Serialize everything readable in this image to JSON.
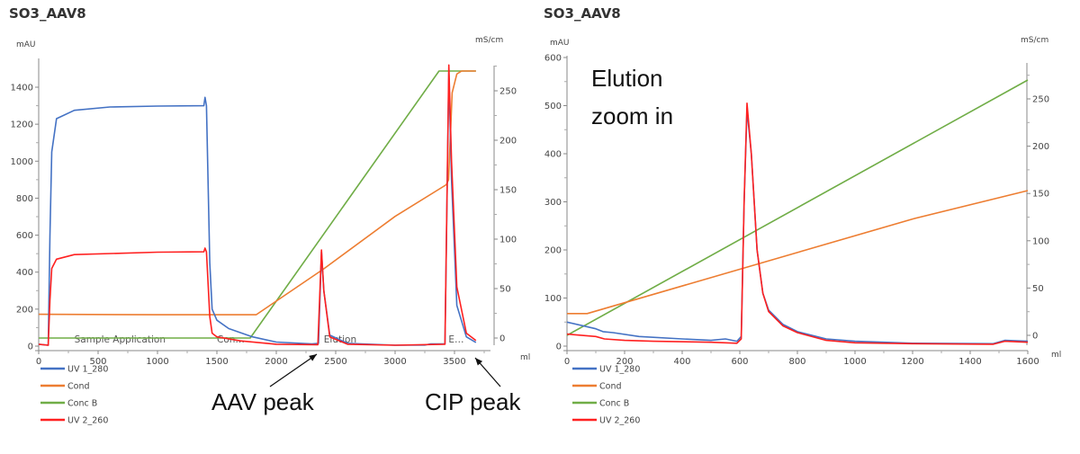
{
  "chart_data": [
    {
      "type": "line",
      "title": "SO3_AAV8",
      "xlabel": "ml",
      "ylabel": "mAU",
      "y2label": "mS/cm",
      "xlim": [
        0,
        3700
      ],
      "ylim": [
        0,
        1550
      ],
      "y2lim": [
        -10,
        275
      ],
      "xticks": [
        0,
        500,
        1000,
        1500,
        2000,
        2500,
        3000,
        3500
      ],
      "yticks": [
        0,
        200,
        400,
        600,
        800,
        1000,
        1200,
        1400
      ],
      "y2ticks": [
        0,
        50,
        100,
        150,
        200,
        250
      ],
      "grid": false,
      "legend_placement": "bottom-left",
      "phase_labels": [
        "Sample Application",
        "Con…",
        "Elution",
        "E…"
      ],
      "phase_x": [
        300,
        1500,
        2400,
        3450
      ],
      "annotations": [
        {
          "text": "AAV peak",
          "points_to_x": 2380
        },
        {
          "text": "CIP peak",
          "points_to_x": 3680
        }
      ],
      "series": [
        {
          "name": "UV 1_280",
          "axis": "left",
          "color": "#4472c4",
          "points": [
            [
              0,
              10
            ],
            [
              80,
              5
            ],
            [
              95,
              600
            ],
            [
              110,
              1050
            ],
            [
              150,
              1230
            ],
            [
              300,
              1275
            ],
            [
              600,
              1293
            ],
            [
              1000,
              1298
            ],
            [
              1390,
              1300
            ],
            [
              1400,
              1345
            ],
            [
              1412,
              1300
            ],
            [
              1440,
              450
            ],
            [
              1460,
              200
            ],
            [
              1500,
              140
            ],
            [
              1600,
              95
            ],
            [
              1800,
              50
            ],
            [
              2000,
              22
            ],
            [
              2300,
              12
            ],
            [
              2355,
              15
            ],
            [
              2380,
              510
            ],
            [
              2400,
              300
            ],
            [
              2450,
              60
            ],
            [
              2600,
              15
            ],
            [
              3000,
              5
            ],
            [
              3250,
              6
            ],
            [
              3300,
              12
            ],
            [
              3420,
              12
            ],
            [
              3452,
              1480
            ],
            [
              3475,
              900
            ],
            [
              3520,
              220
            ],
            [
              3600,
              50
            ],
            [
              3680,
              20
            ]
          ]
        },
        {
          "name": "Cond",
          "axis": "right",
          "color": "#ed7d31",
          "points": [
            [
              0,
              24
            ],
            [
              1000,
              23.5
            ],
            [
              1830,
              23.5
            ],
            [
              2400,
              70
            ],
            [
              3000,
              123
            ],
            [
              3430,
              155
            ],
            [
              3450,
              160
            ],
            [
              3480,
              248
            ],
            [
              3520,
              267
            ],
            [
              3560,
              270
            ],
            [
              3680,
              270
            ]
          ]
        },
        {
          "name": "Conc B",
          "axis": "right",
          "color": "#70ad47",
          "points": [
            [
              0,
              0
            ],
            [
              1780,
              0
            ],
            [
              3370,
              270
            ],
            [
              3680,
              270
            ]
          ]
        },
        {
          "name": "UV 2_260",
          "axis": "left",
          "color": "#ff2020",
          "points": [
            [
              0,
              10
            ],
            [
              80,
              5
            ],
            [
              95,
              250
            ],
            [
              110,
              420
            ],
            [
              150,
              470
            ],
            [
              300,
              495
            ],
            [
              1000,
              508
            ],
            [
              1390,
              510
            ],
            [
              1400,
              530
            ],
            [
              1412,
              510
            ],
            [
              1440,
              160
            ],
            [
              1460,
              70
            ],
            [
              1500,
              50
            ],
            [
              1700,
              28
            ],
            [
              2000,
              10
            ],
            [
              2350,
              8
            ],
            [
              2380,
              520
            ],
            [
              2400,
              300
            ],
            [
              2450,
              50
            ],
            [
              2600,
              10
            ],
            [
              3000,
              5
            ],
            [
              3420,
              10
            ],
            [
              3452,
              1520
            ],
            [
              3475,
              1000
            ],
            [
              3520,
              320
            ],
            [
              3600,
              70
            ],
            [
              3680,
              30
            ]
          ]
        }
      ]
    },
    {
      "type": "line",
      "title": "SO3_AAV8",
      "xlabel": "ml",
      "ylabel": "mAU",
      "y2label": "mS/cm",
      "xlim": [
        0,
        1600
      ],
      "ylim": [
        0,
        600
      ],
      "y2lim": [
        -5,
        275
      ],
      "xticks": [
        0,
        200,
        400,
        600,
        800,
        1000,
        1200,
        1400,
        1600
      ],
      "yticks": [
        0,
        100,
        200,
        300,
        400,
        500,
        600
      ],
      "y2ticks": [
        0,
        50,
        100,
        150,
        200,
        250
      ],
      "grid": false,
      "legend_placement": "bottom-left",
      "annotations": [
        {
          "text": "Elution zoom in"
        }
      ],
      "annotation_lines": [
        "Elution",
        "zoom in"
      ],
      "series": [
        {
          "name": "UV 1_280",
          "axis": "left",
          "color": "#4472c4",
          "points": [
            [
              0,
              50
            ],
            [
              100,
              36
            ],
            [
              125,
              30
            ],
            [
              160,
              28
            ],
            [
              250,
              20
            ],
            [
              400,
              15
            ],
            [
              500,
              12
            ],
            [
              550,
              15
            ],
            [
              590,
              10
            ],
            [
              605,
              20
            ],
            [
              615,
              300
            ],
            [
              625,
              492
            ],
            [
              640,
              400
            ],
            [
              660,
              200
            ],
            [
              680,
              110
            ],
            [
              700,
              75
            ],
            [
              750,
              45
            ],
            [
              800,
              30
            ],
            [
              900,
              15
            ],
            [
              1000,
              10
            ],
            [
              1200,
              6
            ],
            [
              1480,
              5
            ],
            [
              1520,
              12
            ],
            [
              1600,
              10
            ]
          ]
        },
        {
          "name": "Cond",
          "axis": "right",
          "color": "#ed7d31",
          "points": [
            [
              0,
              23
            ],
            [
              70,
              23
            ],
            [
              1200,
              123
            ],
            [
              1600,
              153
            ]
          ]
        },
        {
          "name": "Conc B",
          "axis": "right",
          "color": "#70ad47",
          "points": [
            [
              0,
              0
            ],
            [
              1600,
              270
            ]
          ]
        },
        {
          "name": "UV 2_260",
          "axis": "left",
          "color": "#ff2020",
          "points": [
            [
              0,
              25
            ],
            [
              100,
              20
            ],
            [
              130,
              15
            ],
            [
              200,
              12
            ],
            [
              300,
              10
            ],
            [
              500,
              8
            ],
            [
              590,
              6
            ],
            [
              605,
              15
            ],
            [
              615,
              300
            ],
            [
              625,
              505
            ],
            [
              640,
              400
            ],
            [
              660,
              200
            ],
            [
              680,
              110
            ],
            [
              700,
              72
            ],
            [
              750,
              42
            ],
            [
              800,
              28
            ],
            [
              900,
              12
            ],
            [
              1000,
              7
            ],
            [
              1200,
              5
            ],
            [
              1480,
              4
            ],
            [
              1520,
              10
            ],
            [
              1600,
              8
            ]
          ]
        }
      ]
    }
  ]
}
